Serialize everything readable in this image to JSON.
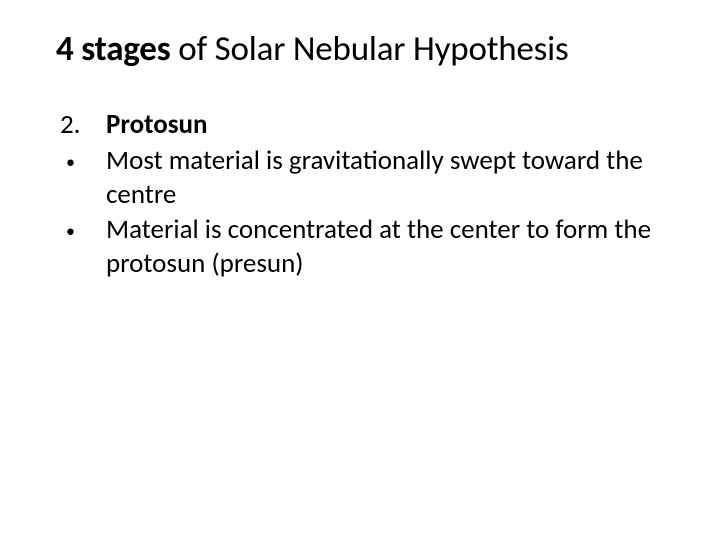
{
  "title": {
    "bold_part": "4 stages",
    "rest": " of Solar Nebular Hypothesis"
  },
  "list": {
    "number": "2.",
    "heading": "Protosun",
    "bullets": [
      "Most material is gravitationally swept toward the centre",
      "Material is concentrated at the center to form the protosun (presun)"
    ]
  },
  "style": {
    "background_color": "#ffffff",
    "text_color": "#000000",
    "title_fontsize": 35,
    "body_fontsize": 27
  }
}
